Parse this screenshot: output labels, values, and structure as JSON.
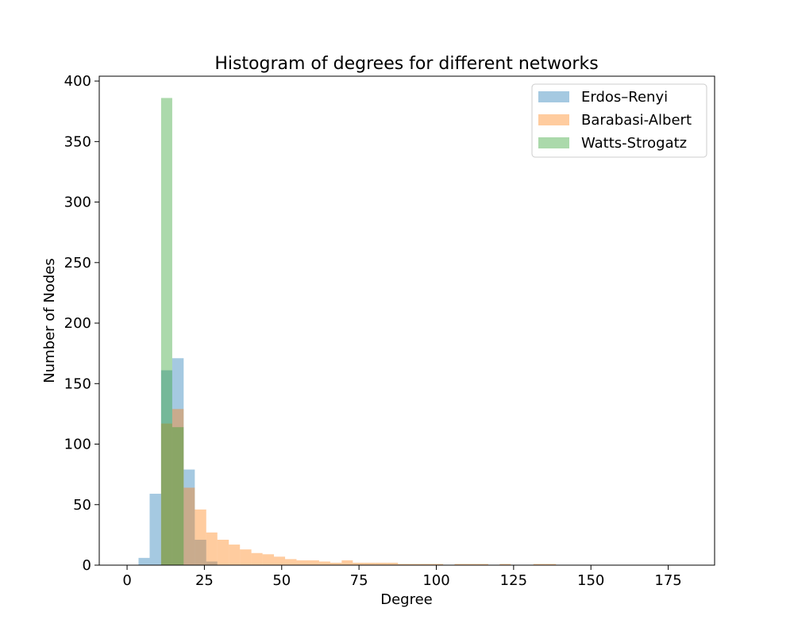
{
  "chart_data": {
    "type": "bar",
    "title": "Histogram of degrees for different networks",
    "xlabel": "Degree",
    "ylabel": "Number of Nodes",
    "xlim": [
      -9,
      190
    ],
    "ylim": [
      0,
      404
    ],
    "xticks": [
      0,
      25,
      50,
      75,
      100,
      125,
      150,
      175
    ],
    "yticks": [
      0,
      50,
      100,
      150,
      200,
      250,
      300,
      350,
      400
    ],
    "grid": false,
    "legend_position": "top-right",
    "bar_opacity": 0.4,
    "series": [
      {
        "name": "Erdos–Renyi",
        "color": "#1f77b4",
        "bins": [
          {
            "x0": 3.7,
            "x1": 7.3,
            "count": 6
          },
          {
            "x0": 7.3,
            "x1": 11.0,
            "count": 59
          },
          {
            "x0": 11.0,
            "x1": 14.6,
            "count": 161
          },
          {
            "x0": 14.6,
            "x1": 18.3,
            "count": 171
          },
          {
            "x0": 18.3,
            "x1": 21.9,
            "count": 79
          },
          {
            "x0": 21.9,
            "x1": 25.6,
            "count": 21
          },
          {
            "x0": 25.6,
            "x1": 29.2,
            "count": 3
          }
        ]
      },
      {
        "name": "Barabasi-Albert",
        "color": "#ff7f0e",
        "bins": [
          {
            "x0": 11.0,
            "x1": 14.6,
            "count": 117
          },
          {
            "x0": 14.6,
            "x1": 18.3,
            "count": 129
          },
          {
            "x0": 18.3,
            "x1": 21.9,
            "count": 64
          },
          {
            "x0": 21.9,
            "x1": 25.6,
            "count": 46
          },
          {
            "x0": 25.6,
            "x1": 29.2,
            "count": 27
          },
          {
            "x0": 29.2,
            "x1": 32.9,
            "count": 21
          },
          {
            "x0": 32.9,
            "x1": 36.5,
            "count": 17
          },
          {
            "x0": 36.5,
            "x1": 40.2,
            "count": 13
          },
          {
            "x0": 40.2,
            "x1": 43.8,
            "count": 10
          },
          {
            "x0": 43.8,
            "x1": 47.5,
            "count": 9
          },
          {
            "x0": 47.5,
            "x1": 51.1,
            "count": 7
          },
          {
            "x0": 51.1,
            "x1": 54.8,
            "count": 5
          },
          {
            "x0": 54.8,
            "x1": 58.4,
            "count": 4
          },
          {
            "x0": 58.4,
            "x1": 62.1,
            "count": 4
          },
          {
            "x0": 62.1,
            "x1": 65.7,
            "count": 3
          },
          {
            "x0": 65.7,
            "x1": 69.4,
            "count": 2
          },
          {
            "x0": 69.4,
            "x1": 73.0,
            "count": 4
          },
          {
            "x0": 73.0,
            "x1": 76.7,
            "count": 2
          },
          {
            "x0": 76.7,
            "x1": 80.3,
            "count": 2
          },
          {
            "x0": 80.3,
            "x1": 84.0,
            "count": 2
          },
          {
            "x0": 84.0,
            "x1": 87.6,
            "count": 2
          },
          {
            "x0": 87.6,
            "x1": 91.3,
            "count": 1
          },
          {
            "x0": 91.3,
            "x1": 94.9,
            "count": 1
          },
          {
            "x0": 94.9,
            "x1": 98.6,
            "count": 1
          },
          {
            "x0": 98.6,
            "x1": 102.2,
            "count": 1
          },
          {
            "x0": 105.9,
            "x1": 109.5,
            "count": 1
          },
          {
            "x0": 109.5,
            "x1": 113.2,
            "count": 1
          },
          {
            "x0": 113.2,
            "x1": 116.8,
            "count": 1
          },
          {
            "x0": 120.5,
            "x1": 124.1,
            "count": 1
          },
          {
            "x0": 131.4,
            "x1": 135.1,
            "count": 1
          },
          {
            "x0": 135.1,
            "x1": 138.7,
            "count": 1
          }
        ]
      },
      {
        "name": "Watts-Strogatz",
        "color": "#2ca02c",
        "bins": [
          {
            "x0": 11.0,
            "x1": 14.6,
            "count": 386
          },
          {
            "x0": 14.6,
            "x1": 18.3,
            "count": 114
          }
        ]
      }
    ]
  }
}
